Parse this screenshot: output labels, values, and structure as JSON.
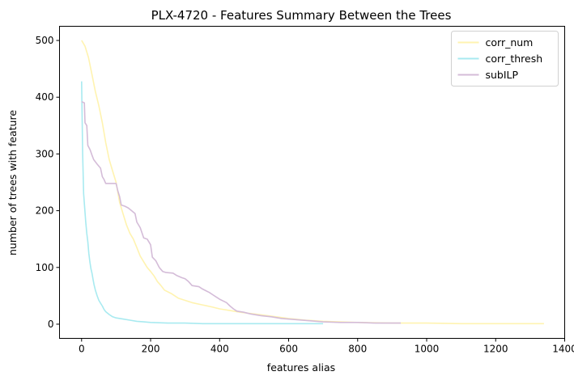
{
  "chart_data": {
    "type": "line",
    "title": "PLX-4720 - Features Summary Between the Trees",
    "xlabel": "features alias",
    "ylabel": "number of trees with feature",
    "xlim": [
      -64,
      1400
    ],
    "ylim": [
      -25,
      525
    ],
    "xticks": [
      0,
      200,
      400,
      600,
      800,
      1000,
      1200,
      1400
    ],
    "yticks": [
      0,
      100,
      200,
      300,
      400,
      500
    ],
    "grid": false,
    "legend_position": "top-right",
    "series": [
      {
        "name": "corr_num",
        "color": "#fff3b0",
        "points": [
          [
            0,
            500
          ],
          [
            10,
            490
          ],
          [
            20,
            470
          ],
          [
            30,
            440
          ],
          [
            40,
            410
          ],
          [
            50,
            385
          ],
          [
            60,
            355
          ],
          [
            70,
            320
          ],
          [
            80,
            290
          ],
          [
            90,
            270
          ],
          [
            100,
            250
          ],
          [
            110,
            215
          ],
          [
            120,
            195
          ],
          [
            130,
            175
          ],
          [
            140,
            160
          ],
          [
            150,
            150
          ],
          [
            160,
            135
          ],
          [
            170,
            120
          ],
          [
            180,
            110
          ],
          [
            190,
            100
          ],
          [
            200,
            93
          ],
          [
            210,
            85
          ],
          [
            220,
            75
          ],
          [
            230,
            68
          ],
          [
            240,
            60
          ],
          [
            260,
            54
          ],
          [
            280,
            46
          ],
          [
            300,
            42
          ],
          [
            320,
            38
          ],
          [
            350,
            34
          ],
          [
            380,
            30
          ],
          [
            400,
            27
          ],
          [
            430,
            24
          ],
          [
            460,
            21
          ],
          [
            500,
            18
          ],
          [
            550,
            14
          ],
          [
            600,
            10
          ],
          [
            650,
            7
          ],
          [
            700,
            5
          ],
          [
            800,
            3
          ],
          [
            900,
            2
          ],
          [
            1000,
            2
          ],
          [
            1100,
            1
          ],
          [
            1200,
            1
          ],
          [
            1340,
            1
          ]
        ]
      },
      {
        "name": "corr_thresh",
        "color": "#a8eaf0",
        "points": [
          [
            0,
            428
          ],
          [
            3,
            300
          ],
          [
            6,
            230
          ],
          [
            9,
            205
          ],
          [
            12,
            180
          ],
          [
            15,
            160
          ],
          [
            18,
            145
          ],
          [
            21,
            125
          ],
          [
            24,
            110
          ],
          [
            27,
            98
          ],
          [
            30,
            90
          ],
          [
            33,
            80
          ],
          [
            36,
            70
          ],
          [
            40,
            60
          ],
          [
            45,
            50
          ],
          [
            50,
            42
          ],
          [
            55,
            37
          ],
          [
            60,
            32
          ],
          [
            65,
            26
          ],
          [
            70,
            22
          ],
          [
            80,
            17
          ],
          [
            90,
            13
          ],
          [
            100,
            11
          ],
          [
            120,
            9
          ],
          [
            140,
            7
          ],
          [
            160,
            5
          ],
          [
            180,
            4
          ],
          [
            200,
            3
          ],
          [
            250,
            2
          ],
          [
            300,
            2
          ],
          [
            350,
            1
          ],
          [
            500,
            1
          ],
          [
            700,
            1
          ]
        ]
      },
      {
        "name": "subILP",
        "color": "#d4bcd8",
        "points": [
          [
            0,
            392
          ],
          [
            8,
            390
          ],
          [
            10,
            355
          ],
          [
            15,
            350
          ],
          [
            18,
            315
          ],
          [
            25,
            307
          ],
          [
            30,
            298
          ],
          [
            35,
            290
          ],
          [
            45,
            282
          ],
          [
            55,
            275
          ],
          [
            60,
            260
          ],
          [
            65,
            255
          ],
          [
            70,
            248
          ],
          [
            100,
            248
          ],
          [
            105,
            235
          ],
          [
            110,
            225
          ],
          [
            115,
            210
          ],
          [
            125,
            208
          ],
          [
            135,
            205
          ],
          [
            145,
            200
          ],
          [
            155,
            195
          ],
          [
            160,
            180
          ],
          [
            170,
            170
          ],
          [
            180,
            152
          ],
          [
            190,
            150
          ],
          [
            200,
            140
          ],
          [
            205,
            118
          ],
          [
            215,
            112
          ],
          [
            225,
            100
          ],
          [
            235,
            93
          ],
          [
            245,
            91
          ],
          [
            265,
            90
          ],
          [
            275,
            86
          ],
          [
            290,
            82
          ],
          [
            300,
            80
          ],
          [
            310,
            75
          ],
          [
            320,
            68
          ],
          [
            340,
            66
          ],
          [
            350,
            62
          ],
          [
            370,
            56
          ],
          [
            380,
            52
          ],
          [
            390,
            48
          ],
          [
            400,
            44
          ],
          [
            410,
            41
          ],
          [
            420,
            38
          ],
          [
            430,
            32
          ],
          [
            440,
            27
          ],
          [
            450,
            23
          ],
          [
            470,
            21
          ],
          [
            490,
            18
          ],
          [
            520,
            15
          ],
          [
            550,
            13
          ],
          [
            580,
            10
          ],
          [
            620,
            8
          ],
          [
            660,
            6
          ],
          [
            700,
            4
          ],
          [
            750,
            3
          ],
          [
            800,
            3
          ],
          [
            850,
            2
          ],
          [
            925,
            2
          ]
        ]
      }
    ]
  }
}
